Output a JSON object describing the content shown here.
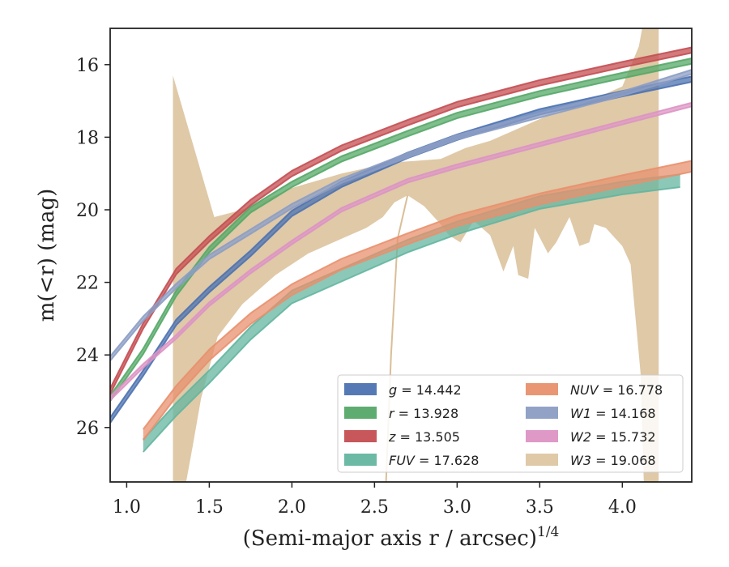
{
  "chart_data": {
    "type": "line",
    "xlabel": "(Semi-major axis r / arcsec)",
    "xlabel_sup": "1/4",
    "ylabel": "m(<r) (mag)",
    "xlim": [
      0.9,
      4.42
    ],
    "ylim": [
      27.5,
      15.0
    ],
    "y_inverted": true,
    "grid": false,
    "legend_position": "lower-right",
    "x_ticks": [
      1.0,
      1.5,
      2.0,
      2.5,
      3.0,
      3.5,
      4.0
    ],
    "x_tick_labels": [
      "1.0",
      "1.5",
      "2.0",
      "2.5",
      "3.0",
      "3.5",
      "4.0"
    ],
    "y_ticks": [
      16,
      18,
      20,
      22,
      24,
      26
    ],
    "y_tick_labels": [
      "16",
      "18",
      "20",
      "22",
      "24",
      "26"
    ],
    "series": [
      {
        "name": "g = 14.442",
        "label": "g",
        "total": "14.442",
        "color": "#4c72b0",
        "x": [
          0.9,
          1.1,
          1.3,
          1.5,
          1.75,
          2.0,
          2.3,
          2.7,
          3.0,
          3.5,
          4.0,
          4.42
        ],
        "y": [
          25.8,
          24.5,
          23.1,
          22.2,
          21.2,
          20.1,
          19.3,
          18.5,
          18.0,
          17.3,
          16.8,
          16.4
        ],
        "band": 0.15
      },
      {
        "name": "r = 13.928",
        "label": "r",
        "total": "13.928",
        "color": "#55a868",
        "x": [
          0.9,
          1.1,
          1.3,
          1.5,
          1.75,
          2.0,
          2.3,
          2.7,
          3.0,
          3.5,
          4.0,
          4.42
        ],
        "y": [
          25.2,
          23.9,
          22.3,
          21.1,
          20.0,
          19.3,
          18.6,
          17.9,
          17.4,
          16.8,
          16.3,
          15.9
        ],
        "band": 0.15
      },
      {
        "name": "z = 13.505",
        "label": "z",
        "total": "13.505",
        "color": "#c44e52",
        "x": [
          0.9,
          1.1,
          1.3,
          1.5,
          1.75,
          2.0,
          2.3,
          2.7,
          3.0,
          3.5,
          4.0,
          4.42
        ],
        "y": [
          25.0,
          23.2,
          21.7,
          20.8,
          19.8,
          19.0,
          18.3,
          17.6,
          17.1,
          16.5,
          16.0,
          15.6
        ],
        "band": 0.15
      },
      {
        "name": "FUV = 17.628",
        "label": "FUV",
        "total": "17.628",
        "color": "#64b5a0",
        "x": [
          1.1,
          1.3,
          1.5,
          1.75,
          2.0,
          2.3,
          2.7,
          3.0,
          3.5,
          4.0,
          4.35
        ],
        "y": [
          26.5,
          25.5,
          24.6,
          23.4,
          22.4,
          21.8,
          21.0,
          20.5,
          19.8,
          19.4,
          19.2
        ],
        "band": 0.35
      },
      {
        "name": "NUV = 16.778",
        "label": "NUV",
        "total": "16.778",
        "color": "#e8906e",
        "x": [
          1.1,
          1.3,
          1.5,
          1.75,
          2.0,
          2.3,
          2.7,
          3.0,
          3.5,
          4.0,
          4.42
        ],
        "y": [
          26.2,
          25.0,
          24.0,
          23.0,
          22.2,
          21.5,
          20.8,
          20.3,
          19.7,
          19.2,
          18.8
        ],
        "band": 0.3
      },
      {
        "name": "W1 = 14.168",
        "label": "W1",
        "total": "14.168",
        "color": "#8c9dc4",
        "x": [
          0.9,
          1.1,
          1.3,
          1.5,
          1.75,
          2.0,
          2.3,
          2.7,
          3.0,
          3.5,
          4.0,
          4.42
        ],
        "y": [
          24.1,
          23.0,
          22.1,
          21.3,
          20.6,
          19.9,
          19.2,
          18.5,
          18.0,
          17.4,
          16.8,
          16.2
        ],
        "band": 0.12
      },
      {
        "name": "W2 = 15.732",
        "label": "W2",
        "total": "15.732",
        "color": "#dd94c4",
        "x": [
          0.9,
          1.1,
          1.3,
          1.5,
          1.75,
          2.0,
          2.3,
          2.7,
          3.0,
          3.5,
          4.0,
          4.42
        ],
        "y": [
          25.2,
          24.3,
          23.5,
          22.6,
          21.7,
          20.9,
          20.0,
          19.2,
          18.8,
          18.2,
          17.6,
          17.1
        ],
        "band": 0.1
      }
    ],
    "w3": {
      "name": "W3 = 19.068",
      "label": "W3",
      "total": "19.068",
      "color": "#d9bf98",
      "upper": [
        [
          1.28,
          16.3
        ],
        [
          1.53,
          20.2
        ],
        [
          1.7,
          20.0
        ],
        [
          2.0,
          19.4
        ],
        [
          2.3,
          19.0
        ],
        [
          2.6,
          18.7
        ],
        [
          2.9,
          18.6
        ],
        [
          3.05,
          18.3
        ],
        [
          3.2,
          18.1
        ],
        [
          3.4,
          17.7
        ],
        [
          3.55,
          17.4
        ],
        [
          3.75,
          17.1
        ],
        [
          3.9,
          16.8
        ],
        [
          4.0,
          16.6
        ],
        [
          4.1,
          15.5
        ],
        [
          4.12,
          15.0
        ],
        [
          4.22,
          15.0
        ]
      ],
      "lower": [
        [
          4.22,
          27.5
        ],
        [
          4.13,
          27.5
        ],
        [
          4.11,
          24.5
        ],
        [
          4.05,
          21.5
        ],
        [
          4.0,
          21.0
        ],
        [
          3.9,
          20.5
        ],
        [
          3.83,
          20.4
        ],
        [
          3.8,
          20.9
        ],
        [
          3.74,
          21.0
        ],
        [
          3.68,
          20.2
        ],
        [
          3.6,
          20.9
        ],
        [
          3.55,
          21.2
        ],
        [
          3.47,
          20.5
        ],
        [
          3.43,
          21.9
        ],
        [
          3.37,
          21.8
        ],
        [
          3.34,
          21.0
        ],
        [
          3.28,
          21.7
        ],
        [
          3.2,
          20.7
        ],
        [
          3.1,
          20.3
        ],
        [
          3.02,
          20.9
        ],
        [
          2.95,
          20.7
        ],
        [
          2.9,
          20.4
        ],
        [
          2.8,
          19.9
        ],
        [
          2.7,
          19.6
        ],
        [
          2.62,
          19.8
        ],
        [
          2.55,
          20.2
        ],
        [
          2.45,
          20.5
        ],
        [
          2.3,
          20.8
        ],
        [
          2.1,
          21.2
        ],
        [
          1.9,
          21.8
        ],
        [
          1.7,
          22.6
        ],
        [
          1.55,
          23.5
        ],
        [
          1.45,
          25.2
        ],
        [
          1.4,
          26.5
        ],
        [
          1.36,
          27.5
        ],
        [
          1.28,
          27.5
        ]
      ],
      "edge_line": [
        [
          2.57,
          27.5
        ],
        [
          2.6,
          24.0
        ],
        [
          2.64,
          20.8
        ],
        [
          2.7,
          19.6
        ]
      ]
    }
  }
}
